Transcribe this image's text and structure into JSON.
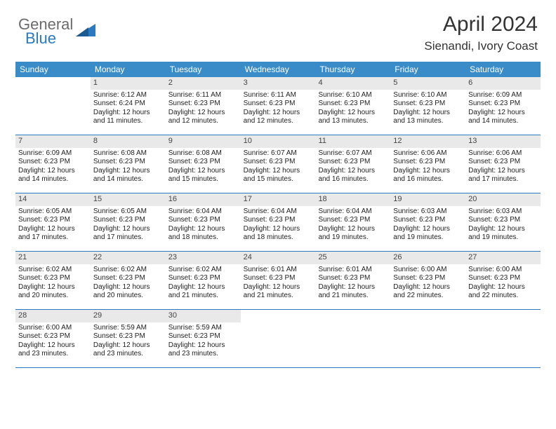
{
  "logo": {
    "general": "General",
    "blue": "Blue"
  },
  "title": "April 2024",
  "location": "Sienandi, Ivory Coast",
  "colors": {
    "header_bg": "#3a8cc9",
    "header_fg": "#ffffff",
    "rule": "#2a7ac0",
    "daynum_bg": "#e9e9e9",
    "logo_gray": "#6b6b6b",
    "logo_blue": "#2a7ac0"
  },
  "fonts": {
    "title_pt": 30,
    "location_pt": 17,
    "dow_pt": 12,
    "daynum_pt": 11,
    "body_pt": 10
  },
  "daysOfWeek": [
    "Sunday",
    "Monday",
    "Tuesday",
    "Wednesday",
    "Thursday",
    "Friday",
    "Saturday"
  ],
  "weeks": [
    [
      {
        "n": "",
        "lines": []
      },
      {
        "n": "1",
        "lines": [
          "Sunrise: 6:12 AM",
          "Sunset: 6:24 PM",
          "Daylight: 12 hours and 11 minutes."
        ]
      },
      {
        "n": "2",
        "lines": [
          "Sunrise: 6:11 AM",
          "Sunset: 6:23 PM",
          "Daylight: 12 hours and 12 minutes."
        ]
      },
      {
        "n": "3",
        "lines": [
          "Sunrise: 6:11 AM",
          "Sunset: 6:23 PM",
          "Daylight: 12 hours and 12 minutes."
        ]
      },
      {
        "n": "4",
        "lines": [
          "Sunrise: 6:10 AM",
          "Sunset: 6:23 PM",
          "Daylight: 12 hours and 13 minutes."
        ]
      },
      {
        "n": "5",
        "lines": [
          "Sunrise: 6:10 AM",
          "Sunset: 6:23 PM",
          "Daylight: 12 hours and 13 minutes."
        ]
      },
      {
        "n": "6",
        "lines": [
          "Sunrise: 6:09 AM",
          "Sunset: 6:23 PM",
          "Daylight: 12 hours and 14 minutes."
        ]
      }
    ],
    [
      {
        "n": "7",
        "lines": [
          "Sunrise: 6:09 AM",
          "Sunset: 6:23 PM",
          "Daylight: 12 hours and 14 minutes."
        ]
      },
      {
        "n": "8",
        "lines": [
          "Sunrise: 6:08 AM",
          "Sunset: 6:23 PM",
          "Daylight: 12 hours and 14 minutes."
        ]
      },
      {
        "n": "9",
        "lines": [
          "Sunrise: 6:08 AM",
          "Sunset: 6:23 PM",
          "Daylight: 12 hours and 15 minutes."
        ]
      },
      {
        "n": "10",
        "lines": [
          "Sunrise: 6:07 AM",
          "Sunset: 6:23 PM",
          "Daylight: 12 hours and 15 minutes."
        ]
      },
      {
        "n": "11",
        "lines": [
          "Sunrise: 6:07 AM",
          "Sunset: 6:23 PM",
          "Daylight: 12 hours and 16 minutes."
        ]
      },
      {
        "n": "12",
        "lines": [
          "Sunrise: 6:06 AM",
          "Sunset: 6:23 PM",
          "Daylight: 12 hours and 16 minutes."
        ]
      },
      {
        "n": "13",
        "lines": [
          "Sunrise: 6:06 AM",
          "Sunset: 6:23 PM",
          "Daylight: 12 hours and 17 minutes."
        ]
      }
    ],
    [
      {
        "n": "14",
        "lines": [
          "Sunrise: 6:05 AM",
          "Sunset: 6:23 PM",
          "Daylight: 12 hours and 17 minutes."
        ]
      },
      {
        "n": "15",
        "lines": [
          "Sunrise: 6:05 AM",
          "Sunset: 6:23 PM",
          "Daylight: 12 hours and 17 minutes."
        ]
      },
      {
        "n": "16",
        "lines": [
          "Sunrise: 6:04 AM",
          "Sunset: 6:23 PM",
          "Daylight: 12 hours and 18 minutes."
        ]
      },
      {
        "n": "17",
        "lines": [
          "Sunrise: 6:04 AM",
          "Sunset: 6:23 PM",
          "Daylight: 12 hours and 18 minutes."
        ]
      },
      {
        "n": "18",
        "lines": [
          "Sunrise: 6:04 AM",
          "Sunset: 6:23 PM",
          "Daylight: 12 hours and 19 minutes."
        ]
      },
      {
        "n": "19",
        "lines": [
          "Sunrise: 6:03 AM",
          "Sunset: 6:23 PM",
          "Daylight: 12 hours and 19 minutes."
        ]
      },
      {
        "n": "20",
        "lines": [
          "Sunrise: 6:03 AM",
          "Sunset: 6:23 PM",
          "Daylight: 12 hours and 19 minutes."
        ]
      }
    ],
    [
      {
        "n": "21",
        "lines": [
          "Sunrise: 6:02 AM",
          "Sunset: 6:23 PM",
          "Daylight: 12 hours and 20 minutes."
        ]
      },
      {
        "n": "22",
        "lines": [
          "Sunrise: 6:02 AM",
          "Sunset: 6:23 PM",
          "Daylight: 12 hours and 20 minutes."
        ]
      },
      {
        "n": "23",
        "lines": [
          "Sunrise: 6:02 AM",
          "Sunset: 6:23 PM",
          "Daylight: 12 hours and 21 minutes."
        ]
      },
      {
        "n": "24",
        "lines": [
          "Sunrise: 6:01 AM",
          "Sunset: 6:23 PM",
          "Daylight: 12 hours and 21 minutes."
        ]
      },
      {
        "n": "25",
        "lines": [
          "Sunrise: 6:01 AM",
          "Sunset: 6:23 PM",
          "Daylight: 12 hours and 21 minutes."
        ]
      },
      {
        "n": "26",
        "lines": [
          "Sunrise: 6:00 AM",
          "Sunset: 6:23 PM",
          "Daylight: 12 hours and 22 minutes."
        ]
      },
      {
        "n": "27",
        "lines": [
          "Sunrise: 6:00 AM",
          "Sunset: 6:23 PM",
          "Daylight: 12 hours and 22 minutes."
        ]
      }
    ],
    [
      {
        "n": "28",
        "lines": [
          "Sunrise: 6:00 AM",
          "Sunset: 6:23 PM",
          "Daylight: 12 hours and 23 minutes."
        ]
      },
      {
        "n": "29",
        "lines": [
          "Sunrise: 5:59 AM",
          "Sunset: 6:23 PM",
          "Daylight: 12 hours and 23 minutes."
        ]
      },
      {
        "n": "30",
        "lines": [
          "Sunrise: 5:59 AM",
          "Sunset: 6:23 PM",
          "Daylight: 12 hours and 23 minutes."
        ]
      },
      {
        "n": "",
        "lines": []
      },
      {
        "n": "",
        "lines": []
      },
      {
        "n": "",
        "lines": []
      },
      {
        "n": "",
        "lines": []
      }
    ]
  ]
}
